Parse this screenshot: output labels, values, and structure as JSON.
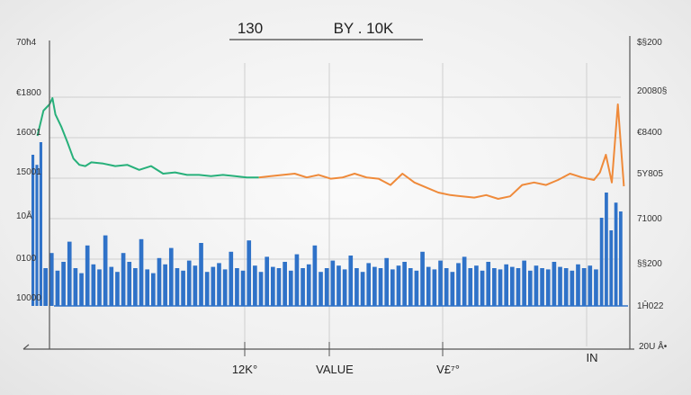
{
  "chart_data": {
    "type": "line",
    "title_left": "130",
    "title_right": "BY . 10K",
    "left_ticks": [
      "70ħ4",
      "€1800",
      "16001",
      "15001",
      "10Å",
      "0100",
      "10000"
    ],
    "right_ticks": [
      "$§200",
      "20080§",
      "€8400",
      "5Y805",
      "71000",
      "§§200",
      "1Ĥ022"
    ],
    "x_labels": [
      "12K°",
      "VALUE",
      "V£⁷°",
      "IN"
    ],
    "corner_label": "20U Å•",
    "axis_scale": {
      "y_min": 0,
      "y_max": 2000,
      "x_min": 0,
      "x_max": 100
    },
    "colors": {
      "green": "#27b07a",
      "orange": "#ef8a3a",
      "blue": "#2f72c8",
      "grid": "#cfcfcf",
      "axis": "#555555"
    },
    "series": [
      {
        "color_key": "green",
        "x": [
          1,
          2,
          3,
          3.5,
          4,
          5,
          6,
          7,
          8,
          9,
          10,
          12,
          14,
          16,
          18,
          20,
          22,
          24,
          26,
          28,
          30,
          32,
          34,
          36,
          38
        ],
        "y": [
          1350,
          1550,
          1600,
          1650,
          1520,
          1420,
          1300,
          1170,
          1120,
          1110,
          1140,
          1130,
          1110,
          1120,
          1080,
          1110,
          1050,
          1060,
          1040,
          1040,
          1030,
          1040,
          1030,
          1020,
          1020
        ]
      },
      {
        "color_key": "orange",
        "x": [
          38,
          40,
          42,
          44,
          46,
          48,
          50,
          52,
          54,
          56,
          58,
          60,
          62,
          64,
          66,
          68,
          70,
          72,
          74,
          76,
          78,
          80,
          82,
          84,
          86,
          88,
          90,
          92,
          94,
          95,
          96,
          97,
          98,
          99
        ],
        "y": [
          1020,
          1030,
          1040,
          1050,
          1020,
          1040,
          1010,
          1020,
          1050,
          1020,
          1010,
          960,
          1050,
          980,
          940,
          900,
          880,
          870,
          860,
          880,
          850,
          870,
          960,
          980,
          960,
          1000,
          1050,
          1020,
          1000,
          1060,
          1200,
          980,
          1600,
          950
        ]
      }
    ],
    "bars": [
      {
        "color_key": "blue",
        "x_range": [
          0,
          2
        ],
        "values": [
          1200,
          1120,
          1300
        ]
      },
      {
        "color_key": "blue",
        "x_range": [
          2,
          95
        ],
        "values": [
          300,
          420,
          280,
          350,
          510,
          300,
          260,
          480,
          330,
          290,
          560,
          310,
          270,
          420,
          350,
          300,
          530,
          290,
          260,
          380,
          330,
          460,
          300,
          280,
          360,
          320,
          500,
          270,
          310,
          340,
          290,
          430,
          300,
          280,
          520,
          320,
          270,
          390,
          310,
          300,
          350,
          280,
          410,
          300,
          330,
          480,
          270,
          300,
          360,
          320,
          290,
          400,
          300,
          270,
          340,
          310,
          300,
          380,
          290,
          320,
          350,
          300,
          280,
          430,
          310,
          290,
          360,
          300,
          270,
          340,
          390,
          300,
          320,
          280,
          350,
          300,
          290,
          330,
          310,
          300,
          360,
          280,
          320,
          300,
          290,
          350,
          310,
          300,
          280,
          330,
          300,
          320,
          290
        ]
      },
      {
        "color_key": "blue",
        "x_range": [
          95,
          99
        ],
        "values": [
          700,
          900,
          600,
          820,
          750
        ]
      }
    ]
  }
}
